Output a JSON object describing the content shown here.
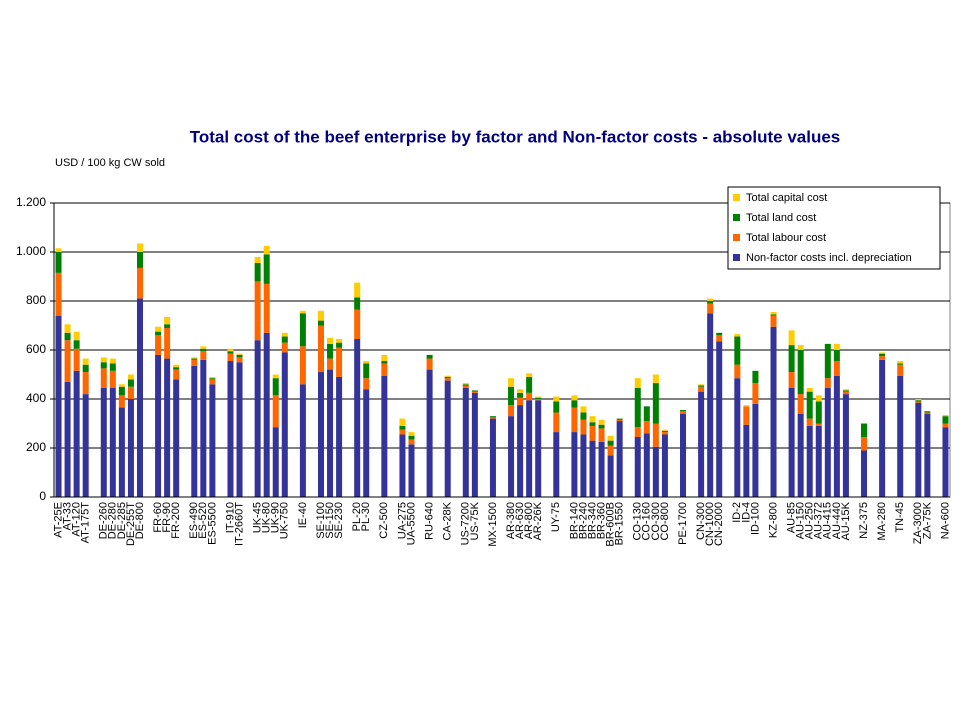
{
  "chart_data": {
    "type": "stacked_bar",
    "title": "Total cost of the beef enterprise by factor and Non-factor costs - absolute values",
    "y_axis_label": "USD / 100 kg CW sold",
    "categories": [
      "AT-25E",
      "AT-33",
      "AT-120",
      "AT-175T",
      null,
      "DE-260",
      "DE-280",
      "DE-285",
      "DE-255T",
      "DE-800",
      null,
      "FR-60",
      "FR-90",
      "FR-200",
      null,
      "ES-490",
      "ES-520",
      "ES-5500",
      null,
      "IT-910",
      "IT-2660T",
      null,
      "UK-45",
      "UK-80",
      "UK-90",
      "UK-750",
      null,
      "IE-40",
      null,
      "SE-100",
      "SE-150",
      "SE-230",
      null,
      "PL-20",
      "PL-30",
      null,
      "CZ-500",
      null,
      "UA-275",
      "UA-5500",
      null,
      "RU-640",
      null,
      "CA-28K",
      null,
      "US-7200",
      "US-75K",
      null,
      "MX-1500",
      null,
      "AR-380",
      "AR-630",
      "AR-800",
      "AR-26K",
      null,
      "UY-75",
      null,
      "BR-140",
      "BR-240",
      "BR-340",
      "BR-360",
      "BR-600B",
      "BR-1550",
      null,
      "CO-130",
      "CO-160",
      "CO-300",
      "CO-800",
      null,
      "PE-1700",
      null,
      "CN-300",
      "CN-1000",
      "CN-2000",
      null,
      "ID-2",
      "ID-4",
      "ID-100",
      null,
      "KZ-800",
      null,
      "AU-85",
      "AU-150",
      "AU-250",
      "AU-372",
      "AU-415",
      "AU-440",
      "AU-15K",
      null,
      "NZ-375",
      null,
      "MA-280",
      null,
      "TN-45",
      null,
      "ZA-3000",
      "ZA-75K",
      null,
      "NA-600"
    ],
    "series": [
      {
        "name": "Non-factor costs incl. depreciation",
        "color": "#333399",
        "values": [
          740,
          470,
          515,
          420,
          null,
          445,
          445,
          365,
          400,
          810,
          null,
          580,
          565,
          480,
          null,
          535,
          560,
          460,
          null,
          555,
          550,
          null,
          640,
          670,
          285,
          590,
          null,
          460,
          null,
          510,
          520,
          490,
          null,
          645,
          440,
          null,
          495,
          null,
          255,
          215,
          null,
          520,
          null,
          475,
          null,
          445,
          425,
          null,
          320,
          null,
          330,
          375,
          395,
          395,
          null,
          265,
          null,
          265,
          255,
          230,
          225,
          170,
          310,
          null,
          245,
          260,
          205,
          255,
          null,
          340,
          null,
          430,
          750,
          635,
          null,
          485,
          295,
          380,
          null,
          695,
          null,
          445,
          340,
          290,
          290,
          445,
          495,
          420,
          null,
          190,
          null,
          560,
          null,
          495,
          null,
          385,
          340,
          null,
          285
        ]
      },
      {
        "name": "Total labour cost",
        "color": "#ff6600",
        "values": [
          175,
          170,
          90,
          90,
          null,
          80,
          70,
          50,
          50,
          125,
          null,
          80,
          125,
          40,
          null,
          25,
          35,
          20,
          null,
          30,
          20,
          null,
          240,
          200,
          130,
          40,
          null,
          155,
          null,
          190,
          45,
          120,
          null,
          120,
          45,
          null,
          50,
          null,
          20,
          20,
          null,
          45,
          null,
          10,
          null,
          10,
          5,
          null,
          5,
          null,
          45,
          30,
          30,
          5,
          null,
          80,
          null,
          100,
          60,
          60,
          55,
          40,
          5,
          null,
          40,
          50,
          95,
          10,
          null,
          10,
          null,
          20,
          40,
          25,
          null,
          55,
          75,
          85,
          null,
          45,
          null,
          65,
          80,
          30,
          10,
          40,
          60,
          10,
          null,
          55,
          null,
          15,
          null,
          45,
          null,
          5,
          5,
          null,
          15
        ]
      },
      {
        "name": "Total land cost",
        "color": "#008000",
        "values": [
          85,
          30,
          35,
          30,
          null,
          25,
          30,
          35,
          30,
          65,
          null,
          15,
          15,
          10,
          null,
          5,
          10,
          5,
          null,
          10,
          10,
          null,
          75,
          120,
          70,
          25,
          null,
          135,
          null,
          20,
          60,
          20,
          null,
          50,
          60,
          null,
          10,
          null,
          15,
          15,
          null,
          15,
          null,
          5,
          null,
          5,
          5,
          null,
          5,
          null,
          75,
          20,
          65,
          5,
          null,
          45,
          null,
          30,
          30,
          15,
          15,
          20,
          5,
          null,
          160,
          60,
          165,
          5,
          null,
          5,
          null,
          5,
          10,
          10,
          null,
          115,
          0,
          50,
          null,
          5,
          null,
          110,
          180,
          110,
          90,
          140,
          45,
          5,
          null,
          55,
          null,
          10,
          null,
          5,
          null,
          5,
          5,
          null,
          30
        ]
      },
      {
        "name": "Total capital cost",
        "color": "#ffcc00",
        "values": [
          15,
          35,
          35,
          25,
          null,
          20,
          20,
          10,
          20,
          35,
          null,
          20,
          30,
          10,
          null,
          5,
          10,
          5,
          null,
          10,
          5,
          null,
          25,
          35,
          15,
          15,
          null,
          10,
          null,
          40,
          25,
          15,
          null,
          60,
          10,
          null,
          25,
          null,
          30,
          15,
          null,
          0,
          null,
          5,
          null,
          5,
          0,
          null,
          0,
          null,
          35,
          15,
          15,
          5,
          null,
          20,
          null,
          20,
          25,
          25,
          20,
          20,
          0,
          null,
          40,
          0,
          35,
          5,
          null,
          0,
          null,
          5,
          10,
          0,
          null,
          10,
          5,
          0,
          null,
          10,
          null,
          60,
          20,
          15,
          25,
          0,
          25,
          5,
          null,
          0,
          null,
          5,
          null,
          10,
          null,
          5,
          0,
          null,
          5
        ]
      }
    ],
    "ylim": [
      0,
      1200
    ],
    "yticks": [
      0,
      200,
      400,
      600,
      800,
      {
        "value": 1000,
        "label": "1.000"
      },
      {
        "value": 1200,
        "label": "1.200"
      }
    ],
    "grid": true,
    "legend": "top-right"
  }
}
